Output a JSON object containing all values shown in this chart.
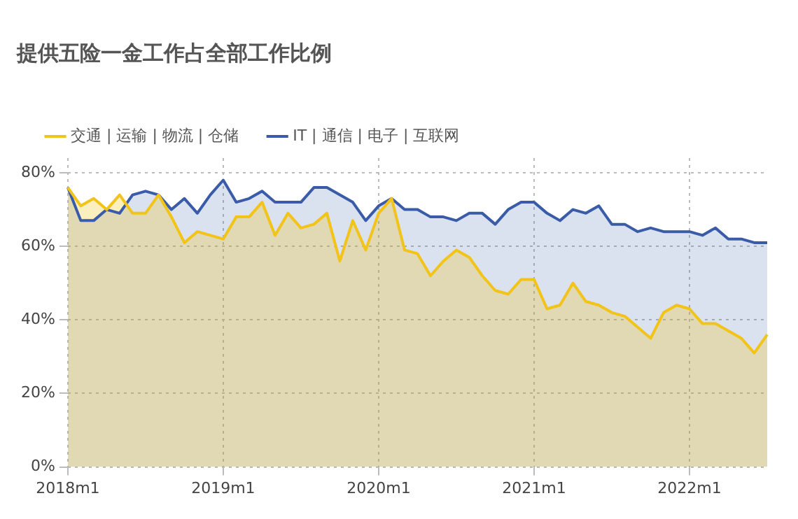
{
  "chart_data": {
    "type": "area",
    "title": "提供五险一金工作占全部工作比例",
    "categories": [
      "2018m1",
      null,
      null,
      null,
      null,
      null,
      null,
      null,
      null,
      null,
      null,
      null,
      "2019m1",
      null,
      null,
      null,
      null,
      null,
      null,
      null,
      null,
      null,
      null,
      null,
      "2020m1",
      null,
      null,
      null,
      null,
      null,
      null,
      null,
      null,
      null,
      null,
      null,
      "2021m1",
      null,
      null,
      null,
      null,
      null,
      null,
      null,
      null,
      null,
      null,
      null,
      "2022m1",
      null,
      null,
      null,
      null,
      null,
      null
    ],
    "series": [
      {
        "name": "交通 | 运输 | 物流 | 仓储",
        "color": "#f2c318",
        "values": [
          76,
          71,
          73,
          70,
          74,
          69,
          69,
          74,
          68,
          61,
          64,
          63,
          62,
          68,
          68,
          72,
          63,
          69,
          65,
          66,
          69,
          56,
          67,
          59,
          69,
          73,
          59,
          58,
          52,
          56,
          59,
          57,
          52,
          48,
          47,
          51,
          51,
          43,
          44,
          50,
          45,
          44,
          42,
          41,
          38,
          35,
          42,
          44,
          43,
          39,
          39,
          37,
          35,
          31,
          36
        ]
      },
      {
        "name": "IT | 通信 | 电子 | 互联网",
        "color": "#3a5ca8",
        "values": [
          76,
          67,
          67,
          70,
          69,
          74,
          75,
          74,
          70,
          73,
          69,
          74,
          78,
          72,
          73,
          75,
          72,
          72,
          72,
          76,
          76,
          74,
          72,
          67,
          71,
          73,
          70,
          70,
          68,
          68,
          67,
          69,
          69,
          66,
          70,
          72,
          72,
          69,
          67,
          70,
          69,
          71,
          66,
          66,
          64,
          65,
          64,
          64,
          64,
          63,
          65,
          62,
          62,
          61,
          61
        ]
      }
    ],
    "ylim": [
      0,
      84
    ],
    "yticks": [
      {
        "value": 0,
        "label": "0%"
      },
      {
        "value": 20,
        "label": "20%"
      },
      {
        "value": 40,
        "label": "40%"
      },
      {
        "value": 60,
        "label": "60%"
      },
      {
        "value": 80,
        "label": "80%"
      }
    ],
    "grid": true,
    "legend": "top left",
    "marker": "none",
    "line_style": "solid"
  }
}
